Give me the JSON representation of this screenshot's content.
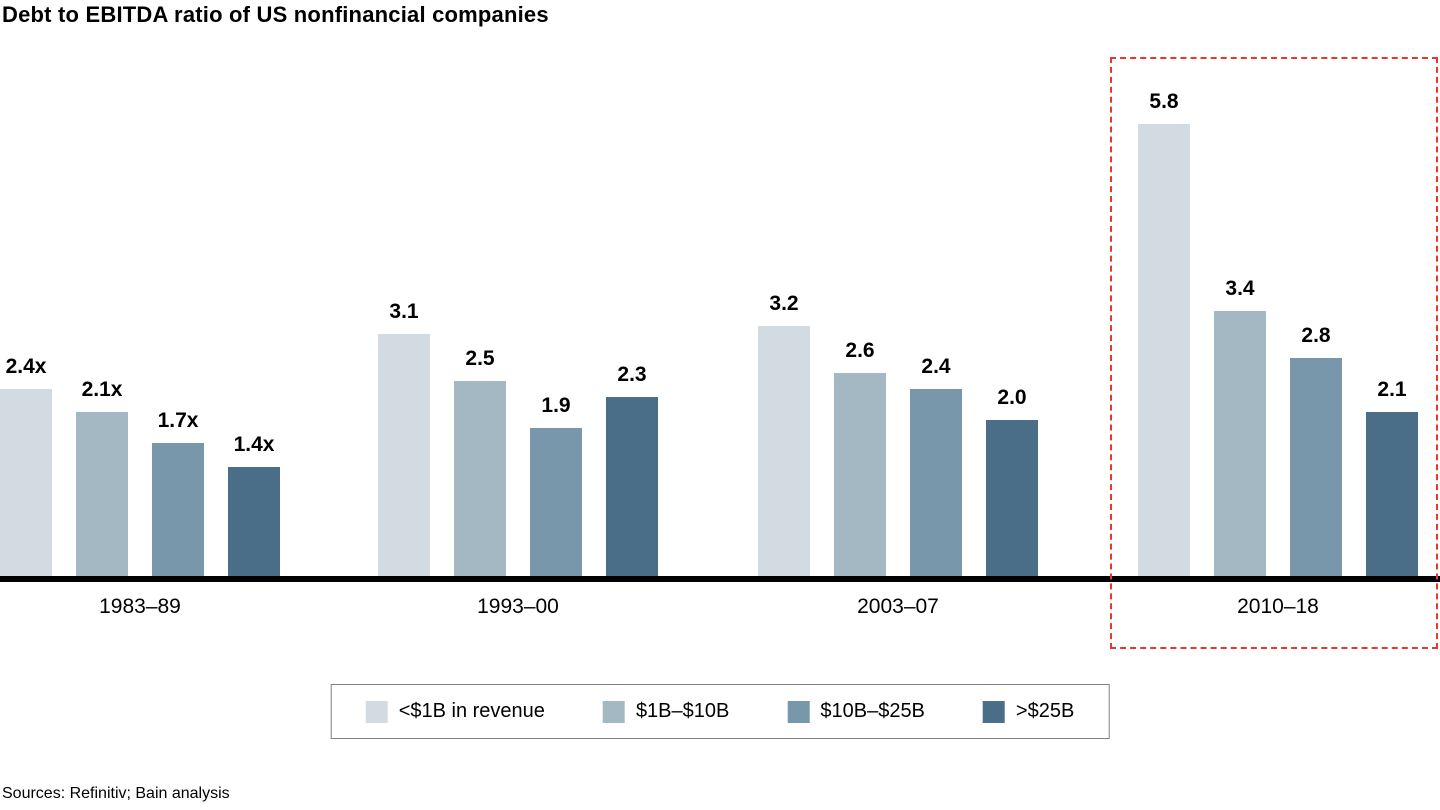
{
  "title": "Debt to EBITDA ratio of US nonfinancial companies",
  "sources": "Sources: Refinitiv; Bain analysis",
  "highlight": {
    "category": "2010–18",
    "border_color": "#e8382e"
  },
  "chart_data": {
    "type": "bar",
    "title": "Debt to EBITDA ratio of US nonfinancial companies",
    "categories": [
      "1983–89",
      "1993–00",
      "2003–07",
      "2010–18"
    ],
    "series": [
      {
        "name": "<$1B in revenue",
        "color": "#d2dbe2",
        "values": [
          2.4,
          3.1,
          3.2,
          5.8
        ],
        "labels": [
          "2.4x",
          "3.1",
          "3.2",
          "5.8"
        ]
      },
      {
        "name": "$1B–$10B",
        "color": "#a4b8c4",
        "values": [
          2.1,
          2.5,
          2.6,
          3.4
        ],
        "labels": [
          "2.1x",
          "2.5",
          "2.6",
          "3.4"
        ]
      },
      {
        "name": "$10B–$25B",
        "color": "#7897ab",
        "values": [
          1.7,
          1.9,
          2.4,
          2.8
        ],
        "labels": [
          "1.7x",
          "1.9",
          "2.4",
          "2.8"
        ]
      },
      {
        "name": ">$25B",
        "color": "#4a6e88",
        "values": [
          1.4,
          2.3,
          2.0,
          2.1
        ],
        "labels": [
          "1.4x",
          "2.3",
          "2.0",
          "2.1"
        ]
      }
    ],
    "xlabel": "",
    "ylabel": "",
    "ylim": [
      0,
      6
    ],
    "grid": false,
    "legend_position": "bottom",
    "highlight_category": "2010–18",
    "annotations": [
      "Red dashed box highlights the 2010–18 period"
    ]
  }
}
